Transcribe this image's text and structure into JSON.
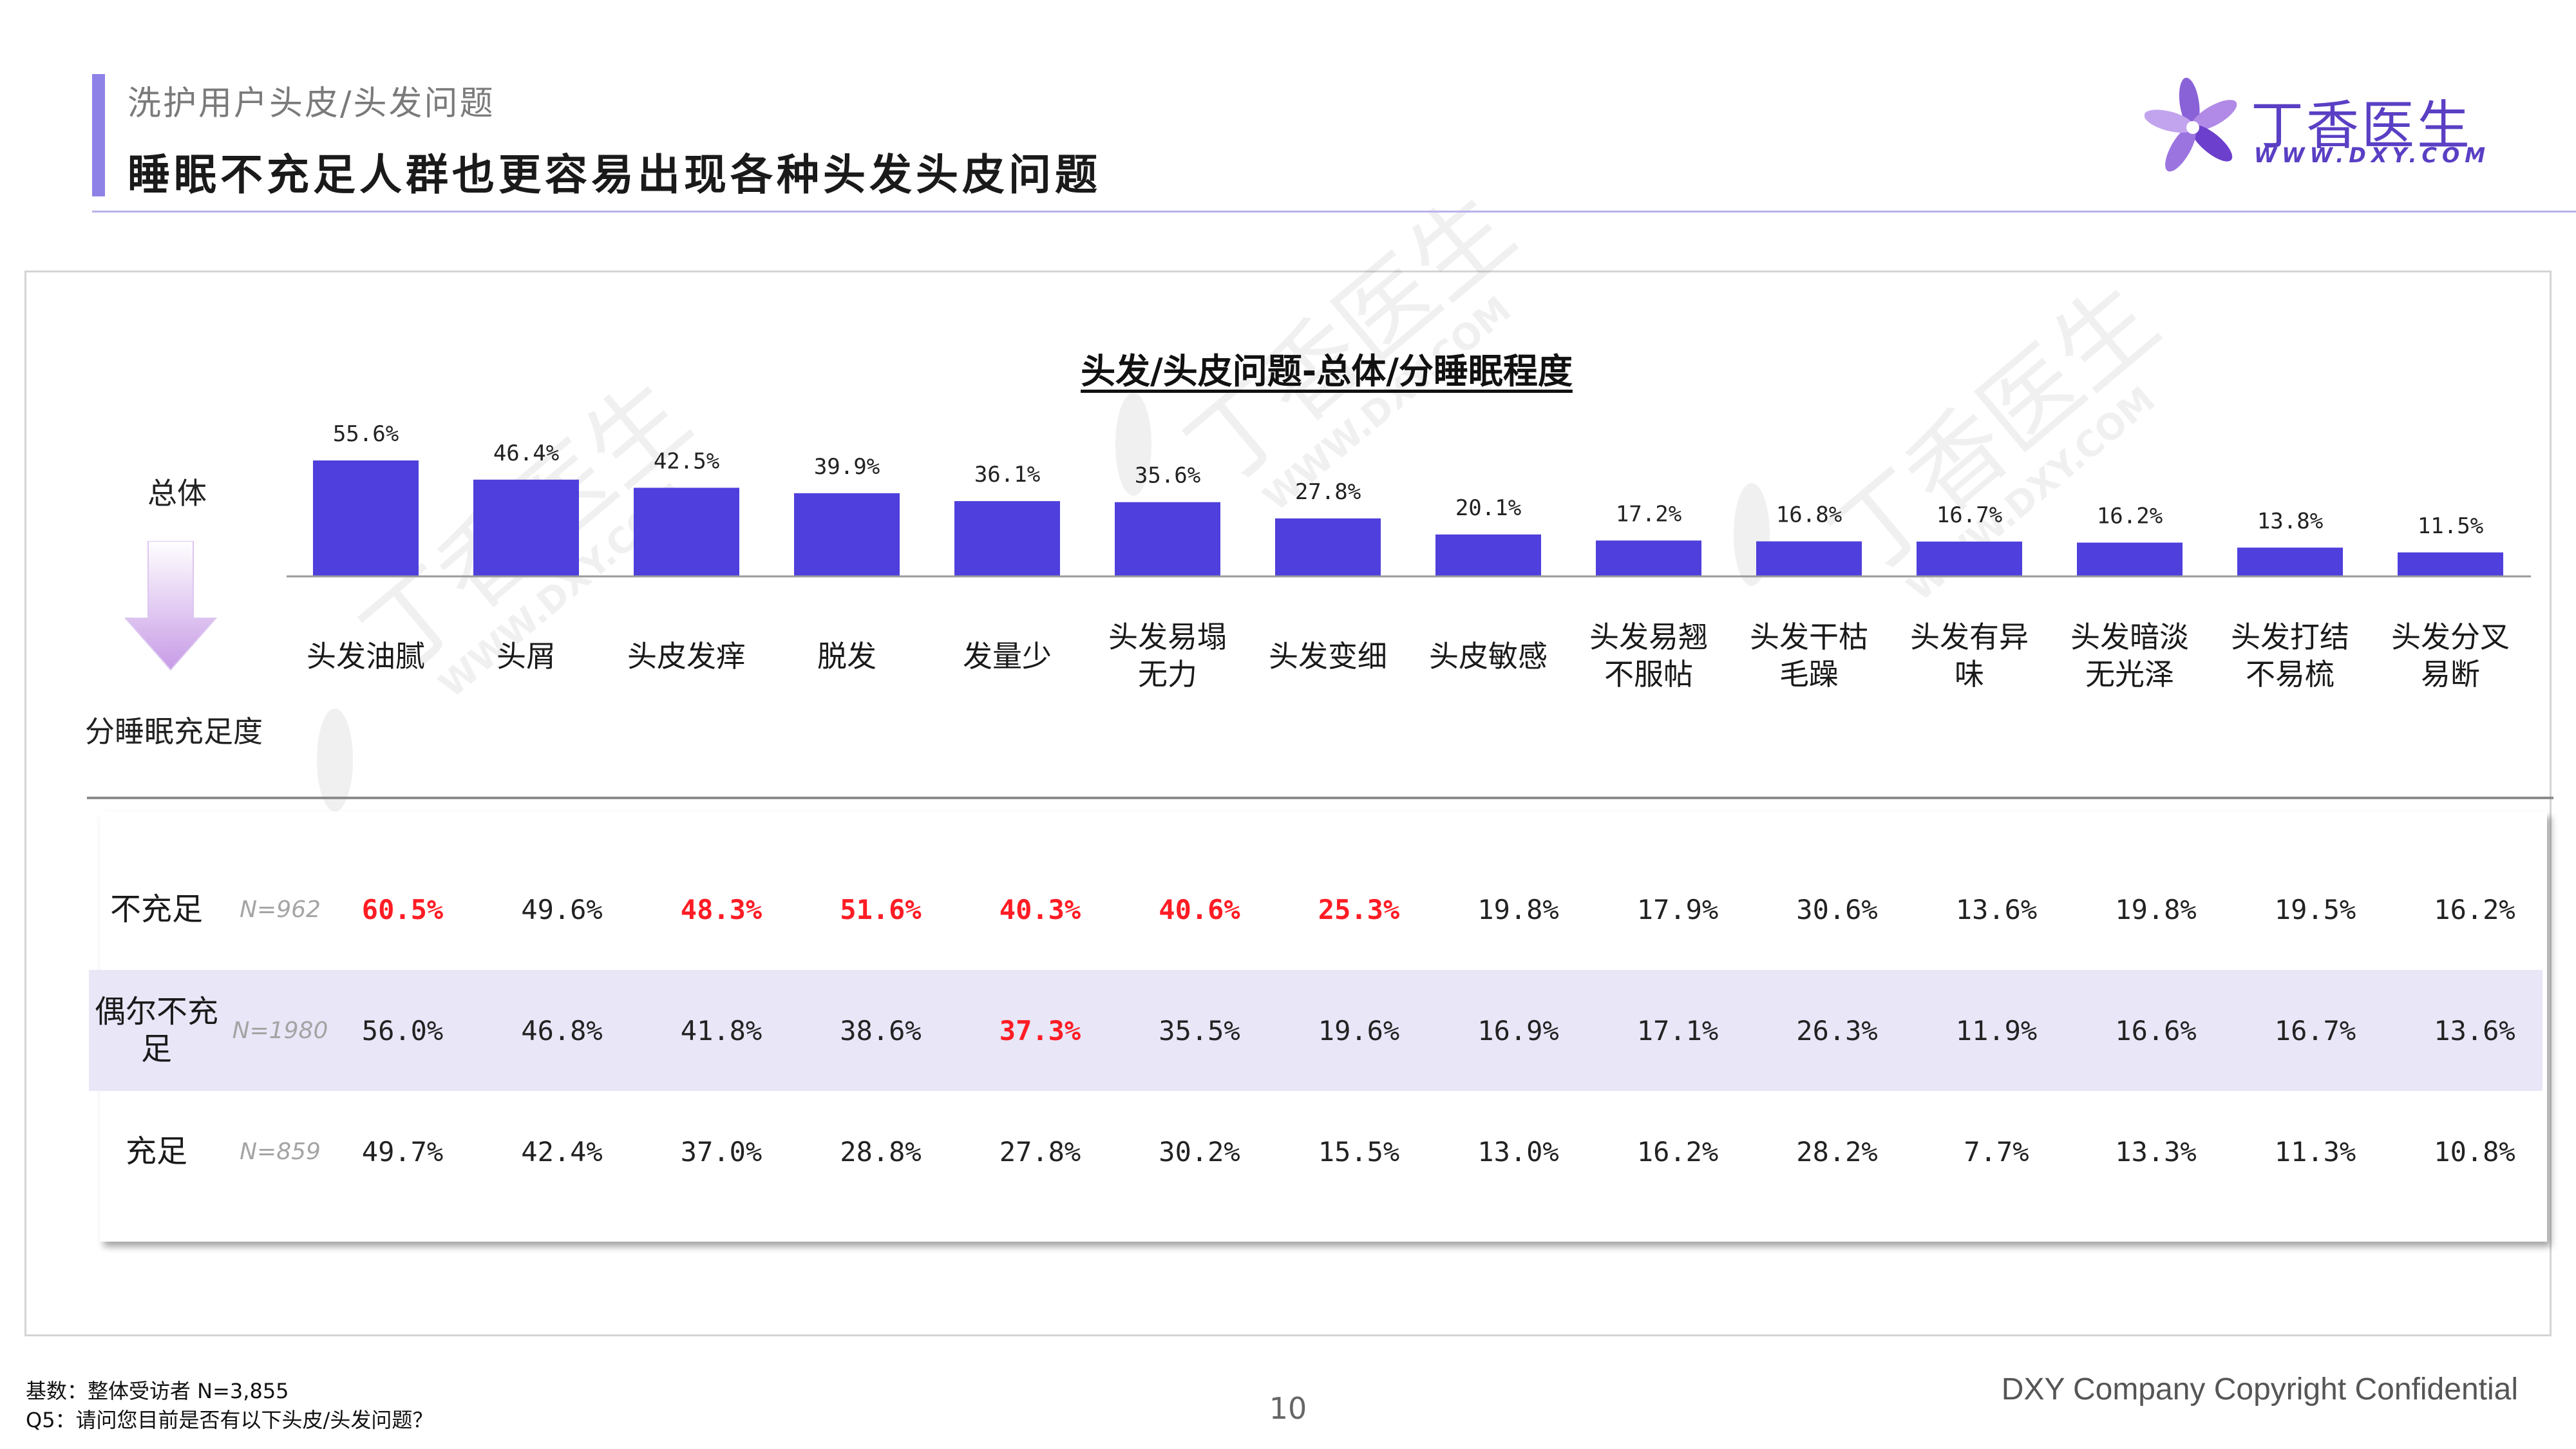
{
  "header": {
    "section_label": "洗护用户头皮/头发问题",
    "title": "睡眠不充足人群也更容易出现各种头发头皮问题",
    "brand_name": "丁香医生",
    "brand_url": "WWW.DXY.COM",
    "brand_color": "#5a3fc4"
  },
  "watermark": {
    "brand_name": "丁香医生",
    "brand_url": "WWW.DXY.COM"
  },
  "chart_data": {
    "type": "bar",
    "title": "头发/头皮问题-总体/分睡眠程度",
    "row_label": "总体",
    "split_label": "分睡眠充足度",
    "bar_color": "#4f3fdc",
    "highlight_color": "#ff1c24",
    "categories": [
      "头发油腻",
      "头屑",
      "头皮发痒",
      "脱发",
      "发量少",
      "头发易塌\n无力",
      "头发变细",
      "头皮敏感",
      "头发易翘\n不服帖",
      "头发干枯\n毛躁",
      "头发有异\n味",
      "头发暗淡\n无光泽",
      "头发打结\n不易梳",
      "头发分叉\n易断"
    ],
    "values": [
      55.6,
      46.4,
      42.5,
      39.9,
      36.1,
      35.6,
      27.8,
      20.1,
      17.2,
      16.8,
      16.7,
      16.2,
      13.8,
      11.5
    ],
    "value_labels": [
      "55.6%",
      "46.4%",
      "42.5%",
      "39.9%",
      "36.1%",
      "35.6%",
      "27.8%",
      "20.1%",
      "17.2%",
      "16.8%",
      "16.7%",
      "16.2%",
      "13.8%",
      "11.5%"
    ],
    "ylim": [
      0,
      60
    ],
    "table": [
      {
        "group": "不充足",
        "n": "N=962",
        "values": [
          "60.5%",
          "49.6%",
          "48.3%",
          "51.6%",
          "40.3%",
          "40.6%",
          "25.3%",
          "19.8%",
          "17.9%",
          "30.6%",
          "13.6%",
          "19.8%",
          "19.5%",
          "16.2%"
        ],
        "highlighted": [
          true,
          false,
          true,
          true,
          true,
          true,
          true,
          false,
          false,
          false,
          false,
          false,
          false,
          false
        ]
      },
      {
        "group": "偶尔不充\n足",
        "n": "N=1980",
        "values": [
          "56.0%",
          "46.8%",
          "41.8%",
          "38.6%",
          "37.3%",
          "35.5%",
          "19.6%",
          "16.9%",
          "17.1%",
          "26.3%",
          "11.9%",
          "16.6%",
          "16.7%",
          "13.6%"
        ],
        "highlighted": [
          false,
          false,
          false,
          false,
          true,
          false,
          false,
          false,
          false,
          false,
          false,
          false,
          false,
          false
        ]
      },
      {
        "group": "充足",
        "n": "N=859",
        "values": [
          "49.7%",
          "42.4%",
          "37.0%",
          "28.8%",
          "27.8%",
          "30.2%",
          "15.5%",
          "13.0%",
          "16.2%",
          "28.2%",
          "7.7%",
          "13.3%",
          "11.3%",
          "10.8%"
        ],
        "highlighted": [
          false,
          false,
          false,
          false,
          false,
          false,
          false,
          false,
          false,
          false,
          false,
          false,
          false,
          false
        ]
      }
    ]
  },
  "footer": {
    "base_note": "基数：整体受访者 N=3,855",
    "question_note": "Q5：请问您目前是否有以下头皮/头发问题？",
    "page_number": "10",
    "copyright": "DXY Company Copyright Confidential"
  }
}
